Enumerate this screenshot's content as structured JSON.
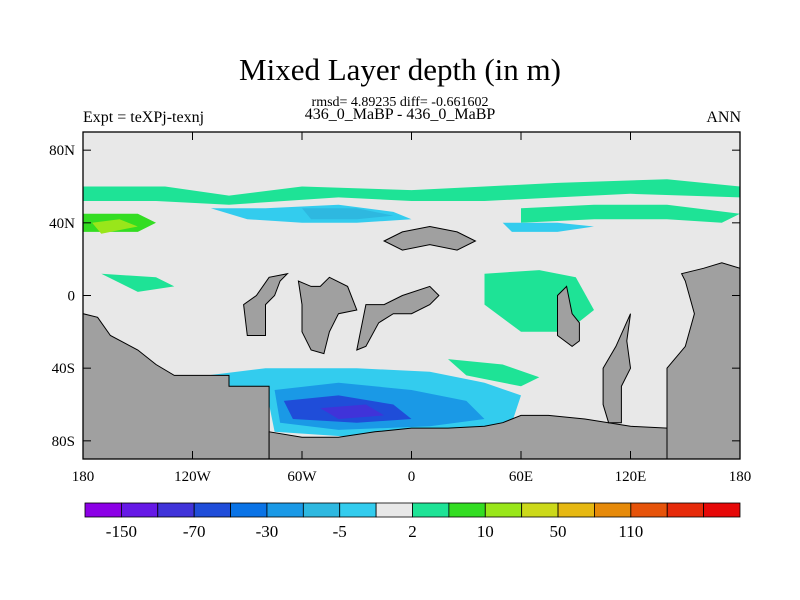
{
  "chart_data": {
    "type": "heatmap",
    "title": "Mixed Layer depth (in m)",
    "stats_line": "rmsd= 4.89235 diff= -0.661602",
    "subtitle": "436_0_MaBP - 436_0_MaBP",
    "left_label": "Expt = teXPj-texnj",
    "right_label": "ANN",
    "x_ticks": [
      {
        "value": -180,
        "label": "180"
      },
      {
        "value": -120,
        "label": "120W"
      },
      {
        "value": -60,
        "label": "60W"
      },
      {
        "value": 0,
        "label": "0"
      },
      {
        "value": 60,
        "label": "60E"
      },
      {
        "value": 120,
        "label": "120E"
      },
      {
        "value": 180,
        "label": "180"
      }
    ],
    "y_ticks": [
      {
        "value": 80,
        "label": "80N"
      },
      {
        "value": 40,
        "label": "40N"
      },
      {
        "value": 0,
        "label": "0"
      },
      {
        "value": -40,
        "label": "40S"
      },
      {
        "value": -80,
        "label": "80S"
      }
    ],
    "xlim": [
      -180,
      180
    ],
    "ylim": [
      -90,
      90
    ],
    "colorbar": {
      "colors": [
        "#8c00e6",
        "#6619e6",
        "#4033d9",
        "#1f4dd9",
        "#0a73e6",
        "#1a99e6",
        "#2eb8e0",
        "#33ccee",
        "#e8e8e8",
        "#1ee396",
        "#33dd22",
        "#99e61a",
        "#ccd91a",
        "#e6b812",
        "#e68a0a",
        "#e6530a",
        "#e62a0a",
        "#e60808"
      ],
      "labels": [
        {
          "index": 1,
          "label": "-150"
        },
        {
          "index": 3,
          "label": "-70"
        },
        {
          "index": 5,
          "label": "-30"
        },
        {
          "index": 7,
          "label": "-5"
        },
        {
          "index": 9,
          "label": "2"
        },
        {
          "index": 11,
          "label": "10"
        },
        {
          "index": 13,
          "label": "50"
        },
        {
          "index": 15,
          "label": "110"
        }
      ]
    },
    "land_color": "#a0a0a0",
    "background_color": "#e8e8e8",
    "land": [
      [
        [
          -78,
          -90
        ],
        [
          -78,
          -50
        ],
        [
          -100,
          -50
        ],
        [
          -100,
          -44
        ],
        [
          -130,
          -44
        ],
        [
          -140,
          -38
        ],
        [
          -150,
          -30
        ],
        [
          -165,
          -22
        ],
        [
          -172,
          -12
        ],
        [
          -180,
          -10
        ],
        [
          -180,
          -90
        ]
      ],
      [
        [
          -180,
          -90
        ],
        [
          180,
          -90
        ],
        [
          180,
          -75
        ],
        [
          120,
          -72
        ],
        [
          95,
          -68
        ],
        [
          75,
          -66
        ],
        [
          60,
          -66
        ],
        [
          50,
          -70
        ],
        [
          40,
          -72
        ],
        [
          20,
          -73
        ],
        [
          0,
          -73
        ],
        [
          -20,
          -75
        ],
        [
          -40,
          -78
        ],
        [
          -60,
          -78
        ],
        [
          -78,
          -75
        ],
        [
          -78,
          -90
        ]
      ],
      [
        [
          140,
          -90
        ],
        [
          140,
          -40
        ],
        [
          150,
          -28
        ],
        [
          155,
          -10
        ],
        [
          150,
          8
        ],
        [
          148,
          12
        ],
        [
          160,
          15
        ],
        [
          170,
          18
        ],
        [
          180,
          15
        ],
        [
          180,
          -90
        ]
      ],
      [
        [
          115,
          -70
        ],
        [
          115,
          -50
        ],
        [
          120,
          -40
        ],
        [
          118,
          -25
        ],
        [
          120,
          -10
        ],
        [
          112,
          -28
        ],
        [
          105,
          -40
        ],
        [
          105,
          -60
        ],
        [
          108,
          -70
        ]
      ],
      [
        [
          -90,
          -22
        ],
        [
          -80,
          -22
        ],
        [
          -80,
          -5
        ],
        [
          -75,
          0
        ],
        [
          -72,
          8
        ],
        [
          -68,
          12
        ],
        [
          -78,
          10
        ],
        [
          -85,
          0
        ],
        [
          -92,
          -5
        ]
      ],
      [
        [
          -60,
          -20
        ],
        [
          -55,
          -30
        ],
        [
          -48,
          -32
        ],
        [
          -45,
          -20
        ],
        [
          -40,
          -10
        ],
        [
          -30,
          -8
        ],
        [
          -35,
          5
        ],
        [
          -45,
          10
        ],
        [
          -50,
          5
        ],
        [
          -55,
          5
        ],
        [
          -62,
          8
        ],
        [
          -60,
          -5
        ]
      ],
      [
        [
          -30,
          -30
        ],
        [
          -25,
          -28
        ],
        [
          -18,
          -15
        ],
        [
          -10,
          -10
        ],
        [
          0,
          -10
        ],
        [
          10,
          -5
        ],
        [
          15,
          0
        ],
        [
          10,
          5
        ],
        [
          -5,
          0
        ],
        [
          -15,
          -5
        ],
        [
          -25,
          -5
        ]
      ],
      [
        [
          -15,
          30
        ],
        [
          -5,
          35
        ],
        [
          10,
          38
        ],
        [
          25,
          35
        ],
        [
          35,
          30
        ],
        [
          25,
          25
        ],
        [
          10,
          28
        ],
        [
          -5,
          25
        ]
      ],
      [
        [
          80,
          -22
        ],
        [
          88,
          -28
        ],
        [
          92,
          -25
        ],
        [
          92,
          -15
        ],
        [
          88,
          -10
        ],
        [
          85,
          5
        ],
        [
          80,
          0
        ]
      ]
    ],
    "ocean_patches": [
      {
        "level": 9,
        "points": [
          [
            -180,
            60
          ],
          [
            -135,
            60
          ],
          [
            -100,
            55
          ],
          [
            -60,
            60
          ],
          [
            0,
            58
          ],
          [
            40,
            60
          ],
          [
            80,
            62
          ],
          [
            140,
            64
          ],
          [
            180,
            60
          ],
          [
            180,
            54
          ],
          [
            120,
            56
          ],
          [
            80,
            54
          ],
          [
            40,
            52
          ],
          [
            0,
            52
          ],
          [
            -40,
            54
          ],
          [
            -100,
            50
          ],
          [
            -140,
            52
          ],
          [
            -180,
            52
          ]
        ]
      },
      {
        "level": 10,
        "points": [
          [
            -180,
            45
          ],
          [
            -150,
            45
          ],
          [
            -140,
            40
          ],
          [
            -150,
            35
          ],
          [
            -180,
            35
          ]
        ]
      },
      {
        "level": 11,
        "points": [
          [
            -175,
            40
          ],
          [
            -160,
            42
          ],
          [
            -150,
            38
          ],
          [
            -170,
            34
          ]
        ]
      },
      {
        "level": 7,
        "points": [
          [
            -110,
            48
          ],
          [
            -80,
            48
          ],
          [
            -40,
            50
          ],
          [
            -10,
            46
          ],
          [
            0,
            42
          ],
          [
            -30,
            40
          ],
          [
            -60,
            40
          ],
          [
            -90,
            42
          ]
        ]
      },
      {
        "level": 6,
        "points": [
          [
            -60,
            48
          ],
          [
            -30,
            48
          ],
          [
            -10,
            44
          ],
          [
            -30,
            42
          ],
          [
            -55,
            42
          ]
        ]
      },
      {
        "level": 9,
        "points": [
          [
            60,
            48
          ],
          [
            100,
            50
          ],
          [
            140,
            50
          ],
          [
            180,
            45
          ],
          [
            170,
            40
          ],
          [
            140,
            42
          ],
          [
            100,
            42
          ],
          [
            60,
            40
          ]
        ]
      },
      {
        "level": 7,
        "points": [
          [
            50,
            40
          ],
          [
            80,
            40
          ],
          [
            100,
            38
          ],
          [
            80,
            35
          ],
          [
            55,
            35
          ]
        ]
      },
      {
        "level": 9,
        "points": [
          [
            40,
            12
          ],
          [
            70,
            14
          ],
          [
            90,
            10
          ],
          [
            100,
            -8
          ],
          [
            85,
            -20
          ],
          [
            60,
            -20
          ],
          [
            40,
            -5
          ]
        ]
      },
      {
        "level": 9,
        "points": [
          [
            -170,
            12
          ],
          [
            -140,
            10
          ],
          [
            -130,
            5
          ],
          [
            -150,
            2
          ],
          -170,
          5
        ]
      }
    ],
    "southern_patches": [
      {
        "level": 7,
        "points": [
          [
            -120,
            -45
          ],
          [
            -80,
            -40
          ],
          [
            -30,
            -40
          ],
          [
            10,
            -42
          ],
          [
            40,
            -48
          ],
          [
            60,
            -55
          ],
          [
            55,
            -70
          ],
          [
            20,
            -75
          ],
          [
            -30,
            -78
          ],
          [
            -75,
            -75
          ],
          [
            -78,
            -60
          ],
          [
            -100,
            -52
          ]
        ]
      },
      {
        "level": 5,
        "points": [
          [
            -75,
            -52
          ],
          [
            -40,
            -48
          ],
          [
            0,
            -52
          ],
          [
            30,
            -58
          ],
          [
            40,
            -68
          ],
          [
            10,
            -72
          ],
          [
            -40,
            -74
          ],
          [
            -72,
            -70
          ]
        ]
      },
      {
        "level": 3,
        "points": [
          [
            -70,
            -58
          ],
          [
            -40,
            -55
          ],
          [
            -10,
            -60
          ],
          [
            0,
            -68
          ],
          [
            -30,
            -70
          ],
          [
            -65,
            -68
          ]
        ]
      },
      {
        "level": 2,
        "points": [
          [
            -50,
            -62
          ],
          [
            -25,
            -60
          ],
          [
            -15,
            -66
          ],
          [
            -40,
            -68
          ]
        ]
      },
      {
        "level": 9,
        "points": [
          [
            20,
            -35
          ],
          [
            50,
            -38
          ],
          [
            70,
            -45
          ],
          [
            60,
            -50
          ],
          [
            30,
            -44
          ]
        ]
      }
    ]
  }
}
